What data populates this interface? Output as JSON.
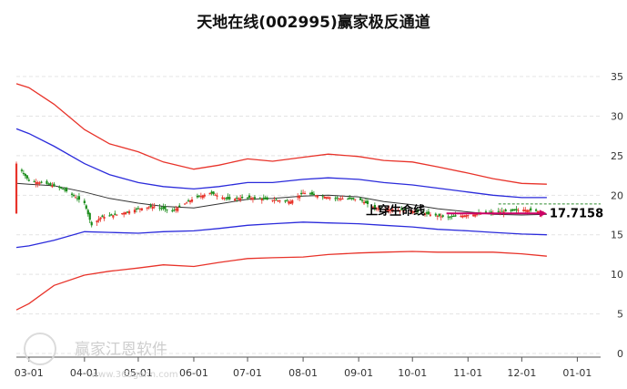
{
  "chart_data": {
    "type": "candlestick",
    "title": "天地在线(002995)赢家极反通道",
    "x_ticks": [
      "03-01",
      "04-01",
      "05-01",
      "06-01",
      "07-01",
      "08-01",
      "09-01",
      "10-01",
      "11-01",
      "12-01",
      "01-01"
    ],
    "x_range": [
      "2024-02-23",
      "2025-01-14"
    ],
    "y_ticks": [
      "0",
      "5",
      "10",
      "15",
      "20",
      "25",
      "30",
      "35"
    ],
    "ylim": [
      0,
      38
    ],
    "grid": true,
    "series": [
      {
        "role": "outer_upper_band",
        "color": "#e8332a",
        "points": [
          [
            "02-23",
            34.1
          ],
          [
            "03-01",
            33.6
          ],
          [
            "03-15",
            31.5
          ],
          [
            "04-01",
            28.3
          ],
          [
            "04-15",
            26.5
          ],
          [
            "05-01",
            25.5
          ],
          [
            "05-15",
            24.2
          ],
          [
            "06-01",
            23.3
          ],
          [
            "06-15",
            23.8
          ],
          [
            "07-01",
            24.6
          ],
          [
            "07-15",
            24.3
          ],
          [
            "08-01",
            24.8
          ],
          [
            "08-15",
            25.2
          ],
          [
            "09-01",
            24.9
          ],
          [
            "09-15",
            24.4
          ],
          [
            "10-01",
            24.2
          ],
          [
            "10-15",
            23.6
          ],
          [
            "11-01",
            22.8
          ],
          [
            "11-15",
            22.1
          ],
          [
            "12-01",
            21.5
          ],
          [
            "12-15",
            21.4
          ]
        ]
      },
      {
        "role": "inner_upper_band",
        "color": "#2b2bdb",
        "points": [
          [
            "02-23",
            28.4
          ],
          [
            "03-01",
            27.8
          ],
          [
            "03-15",
            26.2
          ],
          [
            "04-01",
            24.0
          ],
          [
            "04-15",
            22.6
          ],
          [
            "05-01",
            21.6
          ],
          [
            "05-15",
            21.1
          ],
          [
            "06-01",
            20.8
          ],
          [
            "06-15",
            21.1
          ],
          [
            "07-01",
            21.6
          ],
          [
            "07-15",
            21.6
          ],
          [
            "08-01",
            22.0
          ],
          [
            "08-15",
            22.2
          ],
          [
            "09-01",
            22.0
          ],
          [
            "09-15",
            21.6
          ],
          [
            "10-01",
            21.3
          ],
          [
            "10-15",
            20.9
          ],
          [
            "11-01",
            20.4
          ],
          [
            "11-15",
            20.0
          ],
          [
            "12-01",
            19.7
          ],
          [
            "12-15",
            19.7
          ]
        ]
      },
      {
        "role": "middle_line",
        "color": "#333333",
        "points": [
          [
            "02-23",
            21.5
          ],
          [
            "03-01",
            21.4
          ],
          [
            "03-15",
            21.2
          ],
          [
            "04-01",
            20.4
          ],
          [
            "04-15",
            19.6
          ],
          [
            "05-01",
            19.0
          ],
          [
            "05-15",
            18.6
          ],
          [
            "06-01",
            18.4
          ],
          [
            "06-15",
            18.9
          ],
          [
            "07-01",
            19.5
          ],
          [
            "07-15",
            19.6
          ],
          [
            "08-01",
            19.9
          ],
          [
            "08-15",
            20.0
          ],
          [
            "09-01",
            19.8
          ],
          [
            "09-15",
            19.2
          ],
          [
            "10-01",
            18.8
          ],
          [
            "10-15",
            18.3
          ],
          [
            "11-01",
            17.9
          ],
          [
            "11-15",
            17.6
          ],
          [
            "12-01",
            17.5
          ],
          [
            "12-15",
            17.6
          ]
        ]
      },
      {
        "role": "inner_lower_band",
        "color": "#2b2bdb",
        "points": [
          [
            "02-23",
            13.4
          ],
          [
            "03-01",
            13.6
          ],
          [
            "03-15",
            14.3
          ],
          [
            "04-01",
            15.4
          ],
          [
            "04-15",
            15.3
          ],
          [
            "05-01",
            15.2
          ],
          [
            "05-15",
            15.4
          ],
          [
            "06-01",
            15.5
          ],
          [
            "06-15",
            15.8
          ],
          [
            "07-01",
            16.2
          ],
          [
            "07-15",
            16.4
          ],
          [
            "08-01",
            16.6
          ],
          [
            "08-15",
            16.5
          ],
          [
            "09-01",
            16.4
          ],
          [
            "09-15",
            16.2
          ],
          [
            "10-01",
            16.0
          ],
          [
            "10-15",
            15.7
          ],
          [
            "11-01",
            15.5
          ],
          [
            "11-15",
            15.3
          ],
          [
            "12-01",
            15.1
          ],
          [
            "12-15",
            15.0
          ]
        ]
      },
      {
        "role": "outer_lower_band",
        "color": "#e8332a",
        "points": [
          [
            "02-23",
            5.5
          ],
          [
            "03-01",
            6.3
          ],
          [
            "03-15",
            8.6
          ],
          [
            "04-01",
            9.9
          ],
          [
            "04-15",
            10.4
          ],
          [
            "05-01",
            10.8
          ],
          [
            "05-15",
            11.2
          ],
          [
            "06-01",
            11.0
          ],
          [
            "06-15",
            11.5
          ],
          [
            "07-01",
            12.0
          ],
          [
            "07-15",
            12.1
          ],
          [
            "08-01",
            12.2
          ],
          [
            "08-15",
            12.5
          ],
          [
            "09-01",
            12.7
          ],
          [
            "09-15",
            12.8
          ],
          [
            "10-01",
            12.9
          ],
          [
            "10-15",
            12.8
          ],
          [
            "11-01",
            12.8
          ],
          [
            "11-15",
            12.8
          ],
          [
            "12-01",
            12.6
          ],
          [
            "12-15",
            12.3
          ]
        ]
      }
    ],
    "price_path": [
      [
        "02-23",
        24.0
      ],
      [
        "03-01",
        21.8
      ],
      [
        "03-10",
        21.5
      ],
      [
        "03-20",
        20.8
      ],
      [
        "04-01",
        19.0
      ],
      [
        "04-05",
        16.2
      ],
      [
        "04-10",
        17.2
      ],
      [
        "04-20",
        17.6
      ],
      [
        "05-01",
        18.3
      ],
      [
        "05-10",
        18.6
      ],
      [
        "05-20",
        18.0
      ],
      [
        "06-01",
        19.6
      ],
      [
        "06-10",
        20.3
      ],
      [
        "06-20",
        19.5
      ],
      [
        "07-01",
        19.7
      ],
      [
        "07-15",
        19.4
      ],
      [
        "07-25",
        19.2
      ],
      [
        "08-01",
        20.3
      ],
      [
        "08-10",
        19.9
      ],
      [
        "08-20",
        19.6
      ],
      [
        "09-01",
        19.5
      ],
      [
        "09-10",
        18.4
      ],
      [
        "09-20",
        18.2
      ],
      [
        "10-01",
        18.0
      ],
      [
        "10-10",
        17.6
      ],
      [
        "10-20",
        17.2
      ],
      [
        "11-01",
        17.5
      ],
      [
        "11-15",
        17.8
      ],
      [
        "11-25",
        18.0
      ],
      [
        "12-01",
        18.2
      ],
      [
        "12-10",
        18.0
      ],
      [
        "12-15",
        17.7
      ]
    ],
    "annotations": {
      "label": "上穿生命线",
      "value": "17.7158",
      "reference_line": 18.9,
      "label_color": "#000000",
      "arrow_color": "#cc0066",
      "reference_color": "#2e8b2e"
    },
    "colors": {
      "up": "#e8332a",
      "down": "#1a8c1a"
    }
  },
  "watermark": {
    "text": "赢家江恩软件",
    "url": "www.360gann.com"
  }
}
